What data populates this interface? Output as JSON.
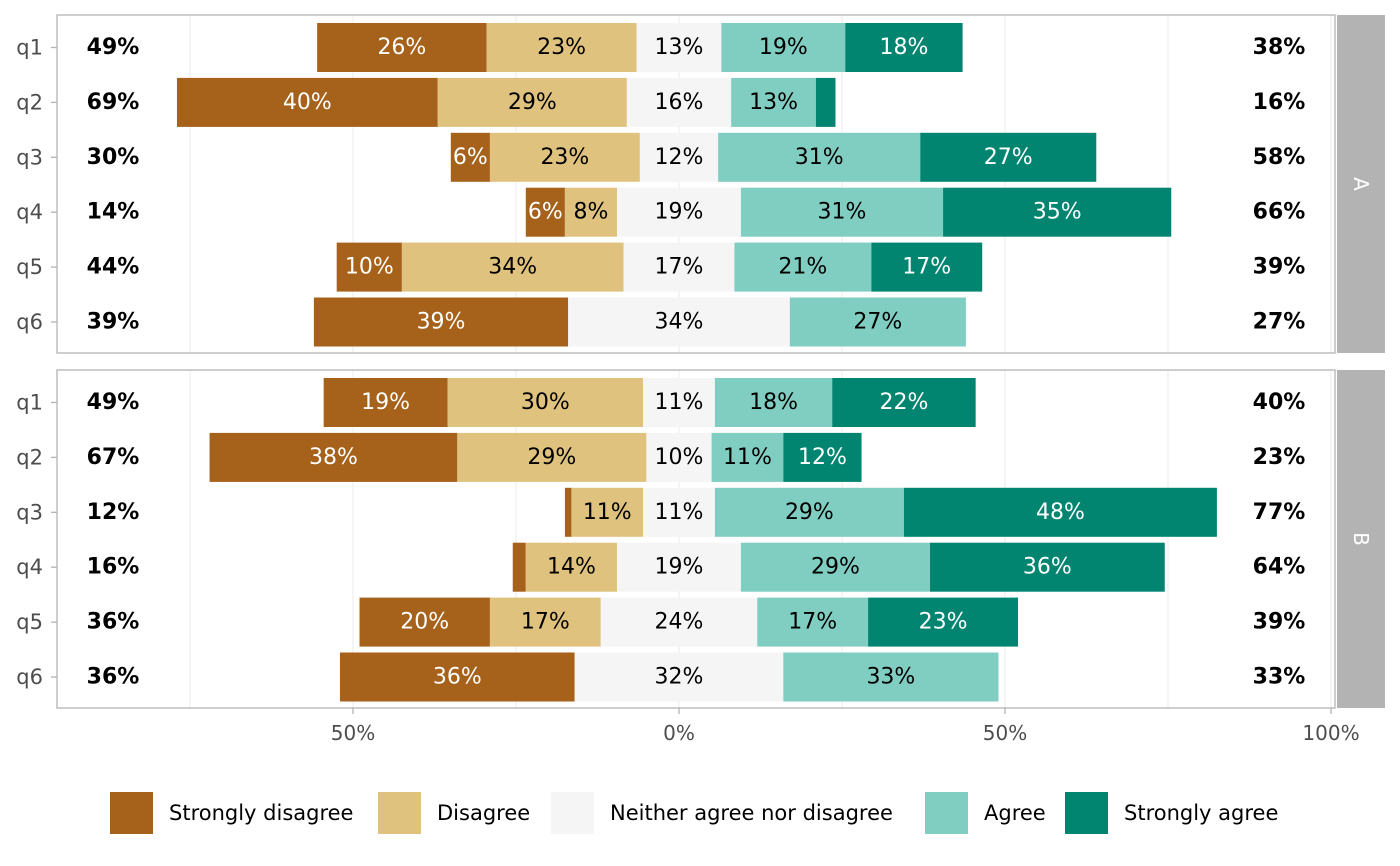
{
  "chart_data": {
    "type": "bar",
    "subtype": "diverging-stacked-likert",
    "orientation": "horizontal",
    "categories": [
      "q1",
      "q2",
      "q3",
      "q4",
      "q5",
      "q6"
    ],
    "levels": [
      "Strongly disagree",
      "Disagree",
      "Neither agree nor disagree",
      "Agree",
      "Strongly agree"
    ],
    "colors": [
      "#a6611a",
      "#dfc27d",
      "#f5f5f5",
      "#80cdc1",
      "#018571"
    ],
    "label_colors": [
      "#ffffff",
      "#000000",
      "#000000",
      "#000000",
      "#ffffff"
    ],
    "xlim": [
      -50,
      100
    ],
    "xticks": [
      -50,
      0,
      50,
      100
    ],
    "xtick_labels": [
      "50%",
      "0%",
      "50%",
      "100%"
    ],
    "xlabel": "",
    "ylabel": "",
    "grid": true,
    "legend": {
      "position": "bottom",
      "entries": [
        "Strongly disagree",
        "Disagree",
        "Neither agree nor disagree",
        "Agree",
        "Strongly agree"
      ]
    },
    "panels": [
      {
        "facet": "A",
        "rows": [
          {
            "question": "q1",
            "values": [
              26,
              23,
              13,
              19,
              18
            ],
            "labels": [
              "26%",
              "23%",
              "13%",
              "19%",
              "18%"
            ],
            "left_total": "49%",
            "right_total": "38%"
          },
          {
            "question": "q2",
            "values": [
              40,
              29,
              16,
              13,
              3
            ],
            "labels": [
              "40%",
              "29%",
              "16%",
              "13%",
              ""
            ],
            "left_total": "69%",
            "right_total": "16%"
          },
          {
            "question": "q3",
            "values": [
              6,
              23,
              12,
              31,
              27
            ],
            "labels": [
              "6%",
              "23%",
              "12%",
              "31%",
              "27%"
            ],
            "left_total": "30%",
            "right_total": "58%"
          },
          {
            "question": "q4",
            "values": [
              6,
              8,
              19,
              31,
              35
            ],
            "labels": [
              "6%",
              "8%",
              "19%",
              "31%",
              "35%"
            ],
            "left_total": "14%",
            "right_total": "66%"
          },
          {
            "question": "q5",
            "values": [
              10,
              34,
              17,
              21,
              17
            ],
            "labels": [
              "10%",
              "34%",
              "17%",
              "21%",
              "17%"
            ],
            "left_total": "44%",
            "right_total": "39%"
          },
          {
            "question": "q6",
            "values": [
              39,
              0,
              34,
              27,
              0
            ],
            "labels": [
              "39%",
              "",
              "34%",
              "27%",
              ""
            ],
            "left_total": "39%",
            "right_total": "27%"
          }
        ]
      },
      {
        "facet": "B",
        "rows": [
          {
            "question": "q1",
            "values": [
              19,
              30,
              11,
              18,
              22
            ],
            "labels": [
              "19%",
              "30%",
              "11%",
              "18%",
              "22%"
            ],
            "left_total": "49%",
            "right_total": "40%"
          },
          {
            "question": "q2",
            "values": [
              38,
              29,
              10,
              11,
              12
            ],
            "labels": [
              "38%",
              "29%",
              "10%",
              "11%",
              "12%"
            ],
            "left_total": "67%",
            "right_total": "23%"
          },
          {
            "question": "q3",
            "values": [
              1,
              11,
              11,
              29,
              48
            ],
            "labels": [
              "",
              "11%",
              "11%",
              "29%",
              "48%"
            ],
            "left_total": "12%",
            "right_total": "77%"
          },
          {
            "question": "q4",
            "values": [
              2,
              14,
              19,
              29,
              36
            ],
            "labels": [
              "",
              "14%",
              "19%",
              "29%",
              "36%"
            ],
            "left_total": "16%",
            "right_total": "64%"
          },
          {
            "question": "q5",
            "values": [
              20,
              17,
              24,
              17,
              23
            ],
            "labels": [
              "20%",
              "17%",
              "24%",
              "17%",
              "23%"
            ],
            "left_total": "36%",
            "right_total": "39%"
          },
          {
            "question": "q6",
            "values": [
              36,
              0,
              32,
              33,
              0
            ],
            "labels": [
              "36%",
              "",
              "32%",
              "33%",
              ""
            ],
            "left_total": "36%",
            "right_total": "33%"
          }
        ]
      }
    ]
  }
}
